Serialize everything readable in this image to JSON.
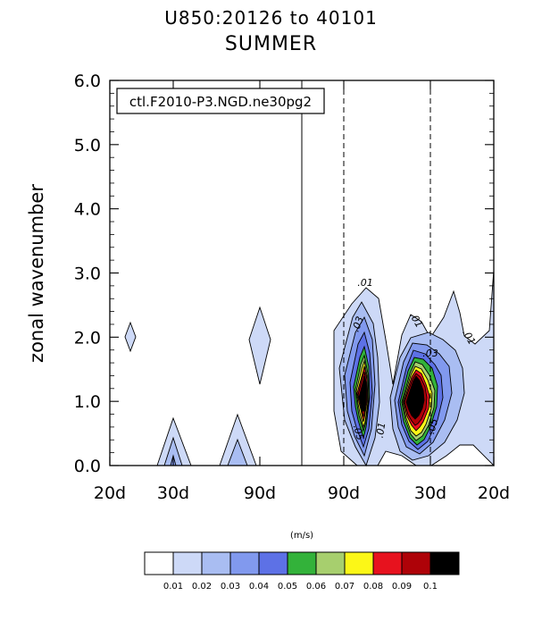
{
  "chart_data": {
    "type": "contour",
    "title": "U850:20126 to 40101",
    "subtitle": "SUMMER",
    "ylabel": "zonal wavenumber",
    "ylim": [
      0.0,
      6.0
    ],
    "yticks": [
      "0.0",
      "1.0",
      "2.0",
      "3.0",
      "4.0",
      "5.0",
      "6.0"
    ],
    "xticks": [
      "20d",
      "30d",
      "90d",
      "90d",
      "30d",
      "20d"
    ],
    "legend_label": "ctl.F2010-P3.NGD.ne30pg2",
    "units": "(m/s)",
    "contour_labels": [
      ".01",
      ".03",
      ".01",
      ".05",
      ".01",
      ".03",
      ".05",
      ".01"
    ],
    "colorbar": {
      "labels": [
        "0.01",
        "0.02",
        "0.03",
        "0.04",
        "0.05",
        "0.06",
        "0.07",
        "0.08",
        "0.09",
        "0.1"
      ],
      "colors": [
        "#ffffff",
        "#cdd9f7",
        "#a9bdf2",
        "#8199ee",
        "#5d71e6",
        "#33b23a",
        "#a7cf6e",
        "#fcf717",
        "#e7121e",
        "#ae0208",
        "#000000"
      ]
    }
  }
}
